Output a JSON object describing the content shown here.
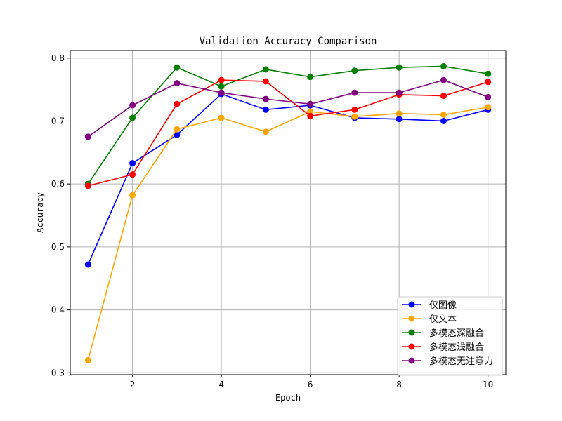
{
  "chart_data": {
    "type": "line",
    "title": "Validation Accuracy Comparison",
    "xlabel": "Epoch",
    "ylabel": "Accuracy",
    "xlim": [
      0.6,
      10.4
    ],
    "ylim": [
      0.297,
      0.812
    ],
    "x_ticks": [
      2,
      4,
      6,
      8,
      10
    ],
    "y_ticks": [
      0.3,
      0.4,
      0.5,
      0.6,
      0.7,
      0.8
    ],
    "grid": true,
    "legend_position": "bottom-right",
    "x": [
      1,
      2,
      3,
      4,
      5,
      6,
      7,
      8,
      9,
      10
    ],
    "series": [
      {
        "name": "仅图像",
        "color": "#0000ff",
        "values": [
          0.472,
          0.633,
          0.678,
          0.743,
          0.718,
          0.725,
          0.705,
          0.703,
          0.7,
          0.718
        ]
      },
      {
        "name": "仅文本",
        "color": "#ffa500",
        "values": [
          0.32,
          0.582,
          0.687,
          0.705,
          0.683,
          0.715,
          0.707,
          0.712,
          0.71,
          0.722
        ]
      },
      {
        "name": "多模态深融合",
        "color": "#008000",
        "values": [
          0.6,
          0.705,
          0.785,
          0.755,
          0.782,
          0.77,
          0.78,
          0.785,
          0.787,
          0.775
        ]
      },
      {
        "name": "多模态浅融合",
        "color": "#ff0000",
        "values": [
          0.597,
          0.615,
          0.727,
          0.765,
          0.763,
          0.708,
          0.718,
          0.742,
          0.74,
          0.762
        ]
      },
      {
        "name": "多模态无注意力",
        "color": "#800080",
        "values": [
          0.675,
          0.725,
          0.76,
          0.745,
          0.735,
          0.727,
          0.745,
          0.745,
          0.765,
          0.738
        ]
      }
    ]
  }
}
